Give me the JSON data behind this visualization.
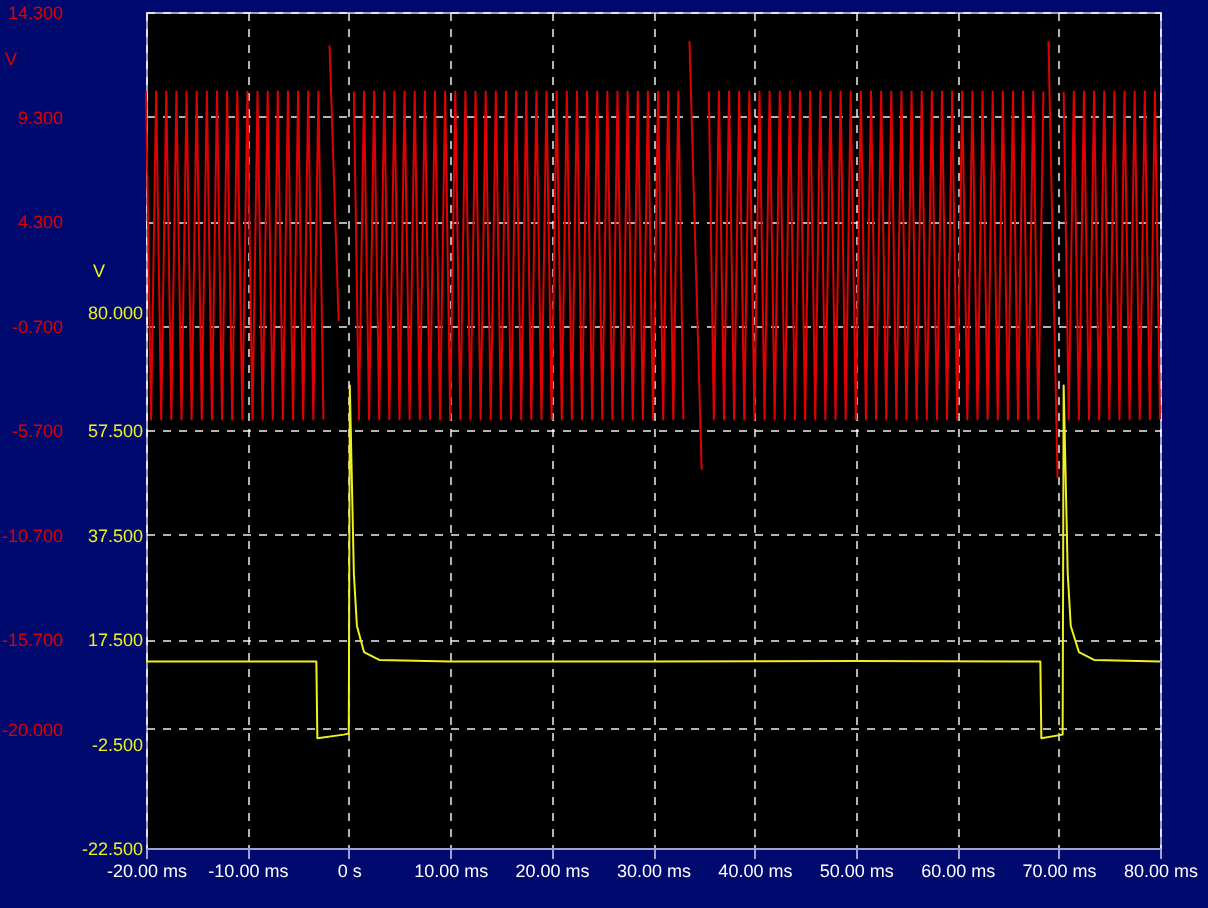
{
  "chart_data": {
    "type": "line",
    "ylabel": "V",
    "y2label": "V",
    "xlim": [
      -20,
      80
    ],
    "xticks": [
      {
        "value": -20,
        "label": "-20.00 ms"
      },
      {
        "value": -10,
        "label": "-10.00 ms"
      },
      {
        "value": 0,
        "label": "0 s"
      },
      {
        "value": 10,
        "label": "10.00 ms"
      },
      {
        "value": 20,
        "label": "20.00 ms"
      },
      {
        "value": 30,
        "label": "30.00 ms"
      },
      {
        "value": 40,
        "label": "40.00 ms"
      },
      {
        "value": 50,
        "label": "50.00 ms"
      },
      {
        "value": 60,
        "label": "60.00 ms"
      },
      {
        "value": 70,
        "label": "70.00 ms"
      },
      {
        "value": 80,
        "label": "80.00 ms"
      }
    ],
    "ylim": [
      -25.7,
      14.3
    ],
    "yticks": [
      {
        "value": 14.3,
        "label": "14.300"
      },
      {
        "value": 9.3,
        "label": "9.300"
      },
      {
        "value": 4.3,
        "label": "4.300"
      },
      {
        "value": -0.7,
        "label": "-0.700"
      },
      {
        "value": -5.7,
        "label": "-5.700"
      },
      {
        "value": -10.7,
        "label": "-10.700"
      },
      {
        "value": -15.7,
        "label": "-15.700"
      },
      {
        "value": -20,
        "label": "-20.000"
      }
    ],
    "y2lim": [
      -22.5,
      137.5
    ],
    "y2ticks": [
      {
        "value": 80,
        "label": "80.000"
      },
      {
        "value": 57.5,
        "label": "57.500"
      },
      {
        "value": 37.5,
        "label": "37.500"
      },
      {
        "value": 17.5,
        "label": "17.500"
      },
      {
        "value": -2.5,
        "label": "-2.500"
      },
      {
        "value": -22.5,
        "label": "-22.500"
      }
    ],
    "grid": true,
    "series": [
      {
        "color": "#e00000",
        "x": [
          -20,
          -19.5,
          -19,
          -18.5,
          -18,
          -17.5,
          -17,
          -16.5,
          -16,
          -15.5,
          -15,
          -14.5,
          -14,
          -13.5,
          -13,
          -12.5,
          -12,
          -11.5,
          -11,
          -10.5,
          -10,
          -9.5,
          -9,
          -8.5,
          -8,
          -7.5,
          -7,
          -6.5,
          -6,
          -5.5,
          -5,
          -4.5,
          -4,
          -3.5,
          -3,
          -2.5,
          -2.2,
          -1.9,
          -1.0,
          -0.8,
          0.5,
          1,
          1.5,
          2,
          2.5,
          3,
          3.5,
          4,
          4.5,
          5,
          5.5,
          6,
          6.5,
          7,
          7.5,
          8,
          8.5,
          9,
          9.5,
          10,
          10.5,
          11,
          11.5,
          12,
          12.5,
          13,
          13.5,
          14,
          14.5,
          15,
          15.5,
          16,
          16.5,
          17,
          17.5,
          18,
          18.5,
          19,
          19.5,
          20,
          20.5,
          21,
          21.5,
          22,
          22.5,
          23,
          23.5,
          24,
          24.5,
          25,
          25.5,
          26,
          26.5,
          27,
          27.5,
          28,
          28.5,
          29,
          29.5,
          30,
          30.5,
          31,
          31.5,
          32,
          32.5,
          33,
          33.3,
          33.6,
          34.8,
          35.0,
          35.5,
          36,
          36.5,
          37,
          37.5,
          38,
          38.5,
          39,
          39.5,
          40,
          40.5,
          41,
          41.5,
          42,
          42.5,
          43,
          43.5,
          44,
          44.5,
          45,
          45.5,
          46,
          46.5,
          47,
          47.5,
          48,
          48.5,
          49,
          49.5,
          50,
          50.5,
          51,
          51.5,
          52,
          52.5,
          53,
          53.5,
          54,
          54.5,
          55,
          55.5,
          56,
          56.5,
          57,
          57.5,
          58,
          58.5,
          59,
          59.5,
          60,
          60.5,
          61,
          61.5,
          62,
          62.5,
          63,
          63.5,
          64,
          64.5,
          65,
          65.5,
          66,
          66.5,
          67,
          67.5,
          68,
          68.5,
          68.7,
          69,
          69.9,
          70.1,
          70.5,
          71,
          71.5,
          72,
          72.5,
          73,
          73.5,
          74,
          74.5,
          75,
          75.5,
          76,
          76.5,
          77,
          77.5,
          78,
          78.5,
          79,
          79.5,
          80
        ],
        "values": [
          10.5,
          -5.2,
          10.5,
          -5.2,
          10.5,
          -5.2,
          10.5,
          -5.2,
          10.5,
          -5.2,
          10.5,
          -5.2,
          10.5,
          -5.2,
          10.5,
          -5.2,
          10.5,
          -5.2,
          10.5,
          -5.2,
          10.5,
          -5.2,
          10.5,
          -5.2,
          10.5,
          -5.2,
          10.5,
          -5.2,
          10.5,
          -5.2,
          10.5,
          -5.2,
          10.5,
          -5.2,
          10.5,
          -5.2,
          null,
          12.7,
          -0.5,
          null,
          10.5,
          -5.2,
          10.5,
          -5.2,
          10.5,
          -5.2,
          10.5,
          -5.2,
          10.5,
          -5.2,
          10.5,
          -5.2,
          10.5,
          -5.2,
          10.5,
          -5.2,
          10.5,
          -5.2,
          10.5,
          -5.2,
          10.5,
          -5.2,
          10.5,
          -5.2,
          10.5,
          -5.2,
          10.5,
          -5.2,
          10.5,
          -5.2,
          10.5,
          -5.2,
          10.5,
          -5.2,
          10.5,
          -5.2,
          10.5,
          -5.2,
          10.5,
          -5.2,
          10.5,
          -5.2,
          10.5,
          -5.2,
          10.5,
          -5.2,
          10.5,
          -5.2,
          10.5,
          -5.2,
          10.5,
          -5.2,
          10.5,
          -5.2,
          10.5,
          -5.2,
          10.5,
          -5.2,
          10.5,
          -5.2,
          10.5,
          -5.2,
          10.5,
          -5.2,
          10.5,
          -5.2,
          null,
          12.9,
          -7.6,
          null,
          10.5,
          -5.2,
          10.5,
          -5.2,
          10.5,
          -5.2,
          10.5,
          -5.2,
          10.5,
          -5.2,
          10.5,
          -5.2,
          10.5,
          -5.2,
          10.5,
          -5.2,
          10.5,
          -5.2,
          10.5,
          -5.2,
          10.5,
          -5.2,
          10.5,
          -5.2,
          10.5,
          -5.2,
          10.5,
          -5.2,
          10.5,
          -5.2,
          10.5,
          -5.2,
          10.5,
          -5.2,
          10.5,
          -5.2,
          10.5,
          -5.2,
          10.5,
          -5.2,
          10.5,
          -5.2,
          10.5,
          -5.2,
          10.5,
          -5.2,
          10.5,
          -5.2,
          10.5,
          -5.2,
          10.5,
          -5.2,
          10.5,
          -5.2,
          10.5,
          -5.2,
          10.5,
          -5.2,
          10.5,
          -5.2,
          10.5,
          -5.2,
          10.5,
          -5.2,
          10.5,
          -5.2,
          10.5,
          null,
          12.9,
          -8.0,
          null,
          10.5,
          -5.2,
          10.5,
          -5.2,
          10.5,
          -5.2,
          10.5,
          -5.2,
          10.5,
          -5.2,
          10.5,
          -5.2,
          10.5,
          -5.2,
          10.5,
          -5.2,
          10.5,
          -5.2,
          10.5,
          -5.2
        ]
      },
      {
        "color": "#f0f020",
        "axis": "y2",
        "x": [
          -20,
          -3.2,
          -3.1,
          -0.5,
          0,
          0.1,
          0.5,
          0.8,
          1.5,
          3,
          10,
          30,
          50,
          68.2,
          68.3,
          70.4,
          70.5,
          70.9,
          71.2,
          72,
          73.5,
          80
        ],
        "values": [
          13.2,
          13.2,
          -1.5,
          -0.8,
          -0.6,
          66,
          30,
          20,
          15,
          13.5,
          13.2,
          13.2,
          13.3,
          13.2,
          -1.5,
          -0.8,
          66,
          30,
          20,
          15,
          13.5,
          13.2
        ]
      }
    ]
  }
}
